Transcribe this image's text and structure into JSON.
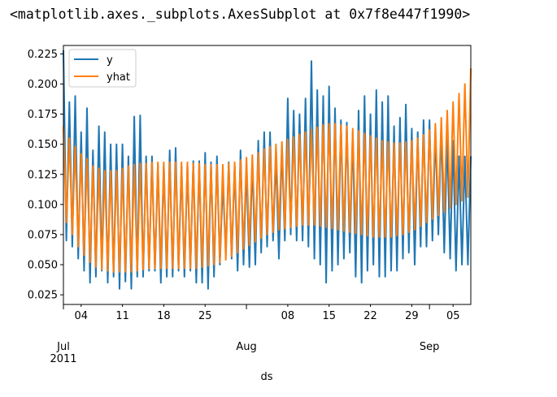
{
  "output_repr": "<matplotlib.axes._subplots.AxesSubplot at 0x7f8e447f1990>",
  "chart_data": {
    "type": "line",
    "title": "",
    "xlabel": "ds",
    "ylabel": "",
    "xlim": [
      "2011-07-01",
      "2011-09-08"
    ],
    "ylim": [
      0.017,
      0.232
    ],
    "yticks": [
      0.025,
      0.05,
      0.075,
      0.1,
      0.125,
      0.15,
      0.175,
      0.2,
      0.225
    ],
    "ytick_labels": [
      "0.025",
      "0.050",
      "0.075",
      "0.100",
      "0.125",
      "0.150",
      "0.175",
      "0.200",
      "0.225"
    ],
    "xticks_minor": [
      {
        "date": "2011-07-04",
        "label": "04"
      },
      {
        "date": "2011-07-11",
        "label": "11"
      },
      {
        "date": "2011-07-18",
        "label": "18"
      },
      {
        "date": "2011-07-25",
        "label": "25"
      },
      {
        "date": "2011-08-08",
        "label": "08"
      },
      {
        "date": "2011-08-15",
        "label": "15"
      },
      {
        "date": "2011-08-22",
        "label": "22"
      },
      {
        "date": "2011-08-29",
        "label": "29"
      },
      {
        "date": "2011-09-05",
        "label": "05"
      }
    ],
    "xticks_major": [
      {
        "date": "2011-07-01",
        "label": "Jul",
        "sublabel": "2011"
      },
      {
        "date": "2011-08-01",
        "label": "Aug",
        "sublabel": ""
      },
      {
        "date": "2011-09-01",
        "label": "Sep",
        "sublabel": ""
      }
    ],
    "legend": {
      "position": "upper-left"
    },
    "grid": false,
    "colors": {
      "y": "#1f77b4",
      "yhat": "#ff7f0e"
    },
    "series": [
      {
        "name": "y",
        "x": [
          "2011-07-01",
          "2011-07-02",
          "2011-07-03",
          "2011-07-04",
          "2011-07-05",
          "2011-07-06",
          "2011-07-07",
          "2011-07-08",
          "2011-07-09",
          "2011-07-10",
          "2011-07-11",
          "2011-07-12",
          "2011-07-13",
          "2011-07-14",
          "2011-07-15",
          "2011-07-16",
          "2011-07-17",
          "2011-07-18",
          "2011-07-19",
          "2011-07-20",
          "2011-07-21",
          "2011-07-22",
          "2011-07-23",
          "2011-07-24",
          "2011-07-25",
          "2011-07-26",
          "2011-07-27",
          "2011-07-28",
          "2011-07-29",
          "2011-07-30",
          "2011-07-31",
          "2011-08-01",
          "2011-08-02",
          "2011-08-03",
          "2011-08-04",
          "2011-08-05",
          "2011-08-06",
          "2011-08-07",
          "2011-08-08",
          "2011-08-09",
          "2011-08-10",
          "2011-08-11",
          "2011-08-12",
          "2011-08-13",
          "2011-08-14",
          "2011-08-15",
          "2011-08-16",
          "2011-08-17",
          "2011-08-18",
          "2011-08-19",
          "2011-08-20",
          "2011-08-21",
          "2011-08-22",
          "2011-08-23",
          "2011-08-24",
          "2011-08-25",
          "2011-08-26",
          "2011-08-27",
          "2011-08-28",
          "2011-08-29",
          "2011-08-30",
          "2011-08-31",
          "2011-09-01",
          "2011-09-02",
          "2011-09-03",
          "2011-09-04",
          "2011-09-05",
          "2011-09-06",
          "2011-09-07",
          "2011-09-08"
        ],
        "high": [
          0.228,
          0.185,
          0.19,
          0.16,
          0.18,
          0.145,
          0.165,
          0.16,
          0.15,
          0.15,
          0.15,
          0.14,
          0.173,
          0.174,
          0.14,
          0.14,
          0.133,
          0.133,
          0.145,
          0.147,
          0.131,
          0.133,
          0.136,
          0.136,
          0.143,
          0.135,
          0.14,
          0.118,
          0.135,
          0.132,
          0.145,
          0.131,
          0.135,
          0.153,
          0.16,
          0.16,
          0.14,
          0.148,
          0.188,
          0.178,
          0.175,
          0.188,
          0.219,
          0.195,
          0.19,
          0.198,
          0.18,
          0.17,
          0.168,
          0.16,
          0.178,
          0.19,
          0.175,
          0.195,
          0.185,
          0.19,
          0.165,
          0.172,
          0.183,
          0.163,
          0.16,
          0.17,
          0.17,
          0.16,
          0.165,
          0.155,
          0.153,
          0.14,
          0.14,
          0.14
        ],
        "low": [
          0.07,
          0.065,
          0.055,
          0.045,
          0.035,
          0.04,
          0.045,
          0.035,
          0.04,
          0.03,
          0.036,
          0.03,
          0.04,
          0.04,
          0.045,
          0.045,
          0.035,
          0.04,
          0.04,
          0.045,
          0.04,
          0.045,
          0.035,
          0.035,
          0.03,
          0.04,
          0.05,
          0.06,
          0.055,
          0.045,
          0.05,
          0.048,
          0.05,
          0.06,
          0.065,
          0.07,
          0.055,
          0.07,
          0.075,
          0.07,
          0.07,
          0.065,
          0.055,
          0.05,
          0.035,
          0.045,
          0.05,
          0.055,
          0.06,
          0.04,
          0.035,
          0.045,
          0.05,
          0.04,
          0.04,
          0.045,
          0.045,
          0.055,
          0.06,
          0.05,
          0.065,
          0.065,
          0.07,
          0.075,
          0.06,
          0.055,
          0.045,
          0.05,
          0.05,
          0.09
        ]
      },
      {
        "name": "yhat",
        "x": [
          "2011-07-01",
          "2011-07-02",
          "2011-07-03",
          "2011-07-04",
          "2011-07-05",
          "2011-07-06",
          "2011-07-07",
          "2011-07-08",
          "2011-07-09",
          "2011-07-10",
          "2011-07-11",
          "2011-07-12",
          "2011-07-13",
          "2011-07-14",
          "2011-07-15",
          "2011-07-16",
          "2011-07-17",
          "2011-07-18",
          "2011-07-19",
          "2011-07-20",
          "2011-07-21",
          "2011-07-22",
          "2011-07-23",
          "2011-07-24",
          "2011-07-25",
          "2011-07-26",
          "2011-07-27",
          "2011-07-28",
          "2011-07-29",
          "2011-07-30",
          "2011-07-31",
          "2011-08-01",
          "2011-08-02",
          "2011-08-03",
          "2011-08-04",
          "2011-08-05",
          "2011-08-06",
          "2011-08-07",
          "2011-08-08",
          "2011-08-09",
          "2011-08-10",
          "2011-08-11",
          "2011-08-12",
          "2011-08-13",
          "2011-08-14",
          "2011-08-15",
          "2011-08-16",
          "2011-08-17",
          "2011-08-18",
          "2011-08-19",
          "2011-08-20",
          "2011-08-21",
          "2011-08-22",
          "2011-08-23",
          "2011-08-24",
          "2011-08-25",
          "2011-08-26",
          "2011-08-27",
          "2011-08-28",
          "2011-08-29",
          "2011-08-30",
          "2011-08-31",
          "2011-09-01",
          "2011-09-02",
          "2011-09-03",
          "2011-09-04",
          "2011-09-05",
          "2011-09-06",
          "2011-09-07",
          "2011-09-08"
        ],
        "high": [
          0.165,
          0.155,
          0.148,
          0.142,
          0.138,
          0.132,
          0.13,
          0.128,
          0.128,
          0.128,
          0.13,
          0.132,
          0.133,
          0.134,
          0.134,
          0.135,
          0.135,
          0.135,
          0.135,
          0.135,
          0.135,
          0.135,
          0.134,
          0.134,
          0.133,
          0.133,
          0.133,
          0.133,
          0.134,
          0.135,
          0.137,
          0.139,
          0.141,
          0.143,
          0.146,
          0.148,
          0.15,
          0.152,
          0.154,
          0.156,
          0.158,
          0.16,
          0.162,
          0.164,
          0.166,
          0.167,
          0.167,
          0.166,
          0.165,
          0.163,
          0.161,
          0.159,
          0.157,
          0.155,
          0.153,
          0.152,
          0.151,
          0.151,
          0.152,
          0.153,
          0.155,
          0.158,
          0.162,
          0.167,
          0.172,
          0.178,
          0.185,
          0.192,
          0.2,
          0.213
        ],
        "low": [
          0.085,
          0.075,
          0.065,
          0.058,
          0.052,
          0.048,
          0.046,
          0.045,
          0.044,
          0.044,
          0.044,
          0.044,
          0.045,
          0.046,
          0.047,
          0.047,
          0.047,
          0.047,
          0.047,
          0.047,
          0.047,
          0.047,
          0.047,
          0.048,
          0.049,
          0.05,
          0.052,
          0.054,
          0.057,
          0.06,
          0.063,
          0.066,
          0.069,
          0.072,
          0.075,
          0.077,
          0.079,
          0.08,
          0.081,
          0.082,
          0.083,
          0.083,
          0.083,
          0.082,
          0.081,
          0.08,
          0.079,
          0.078,
          0.077,
          0.076,
          0.075,
          0.074,
          0.073,
          0.073,
          0.073,
          0.073,
          0.074,
          0.075,
          0.077,
          0.079,
          0.082,
          0.085,
          0.088,
          0.091,
          0.094,
          0.097,
          0.1,
          0.103,
          0.106,
          0.11
        ]
      }
    ]
  }
}
